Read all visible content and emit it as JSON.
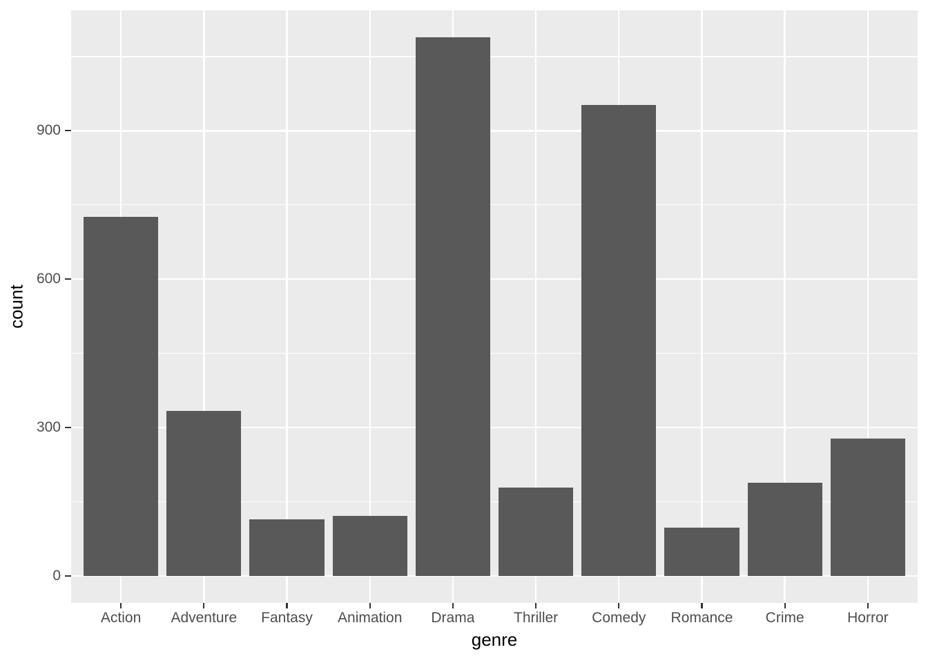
{
  "figure": {
    "xlabel": "genre",
    "ylabel": "count"
  },
  "chart_data": {
    "type": "bar",
    "title": "",
    "categories": [
      "Action",
      "Adventure",
      "Fantasy",
      "Animation",
      "Drama",
      "Thriller",
      "Comedy",
      "Romance",
      "Crime",
      "Horror"
    ],
    "values": [
      726,
      333,
      115,
      121,
      1089,
      179,
      952,
      98,
      188,
      278
    ],
    "xlabel": "genre",
    "ylabel": "count",
    "yticks": [
      0,
      300,
      600,
      900
    ],
    "yticks_minor": [
      150,
      450,
      750,
      1050
    ],
    "ylim": [
      -54.5,
      1143.5
    ],
    "bar_width_ratio": 0.9,
    "grid": true,
    "legend": "none",
    "colors": {
      "bar": "#595959",
      "panel_bg": "#EBEBEB",
      "grid": "#FFFFFF",
      "tick_label": "#4D4D4D",
      "axis_title": "#000000",
      "tick_mark": "#333333",
      "background": "#FFFFFF"
    }
  }
}
